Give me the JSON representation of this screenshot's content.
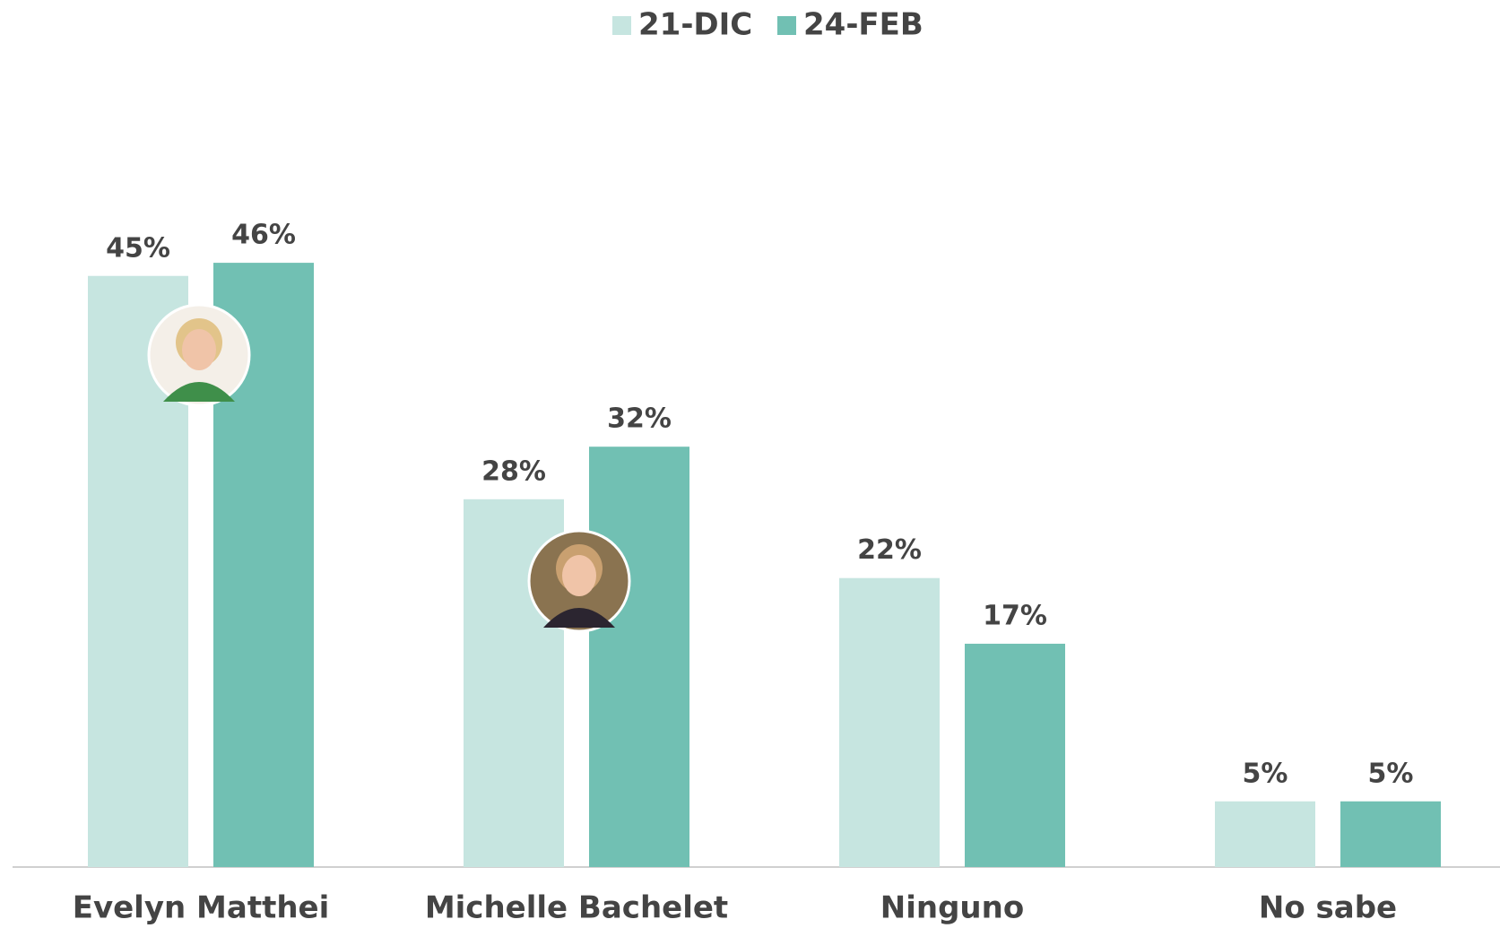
{
  "chart_data": {
    "type": "bar",
    "categories": [
      "Evelyn Matthei",
      "Michelle Bachelet",
      "Ninguno",
      "No sabe"
    ],
    "series": [
      {
        "name": "21-DIC",
        "color": "#c6e5e0",
        "values": [
          45,
          28,
          22,
          5
        ],
        "value_labels": [
          "45%",
          "28%",
          "22%",
          "5%"
        ]
      },
      {
        "name": "24-FEB",
        "color": "#71c0b3",
        "values": [
          46,
          32,
          17,
          5
        ],
        "value_labels": [
          "46%",
          "32%",
          "17%",
          "5%"
        ]
      }
    ],
    "legend": "top"
  }
}
